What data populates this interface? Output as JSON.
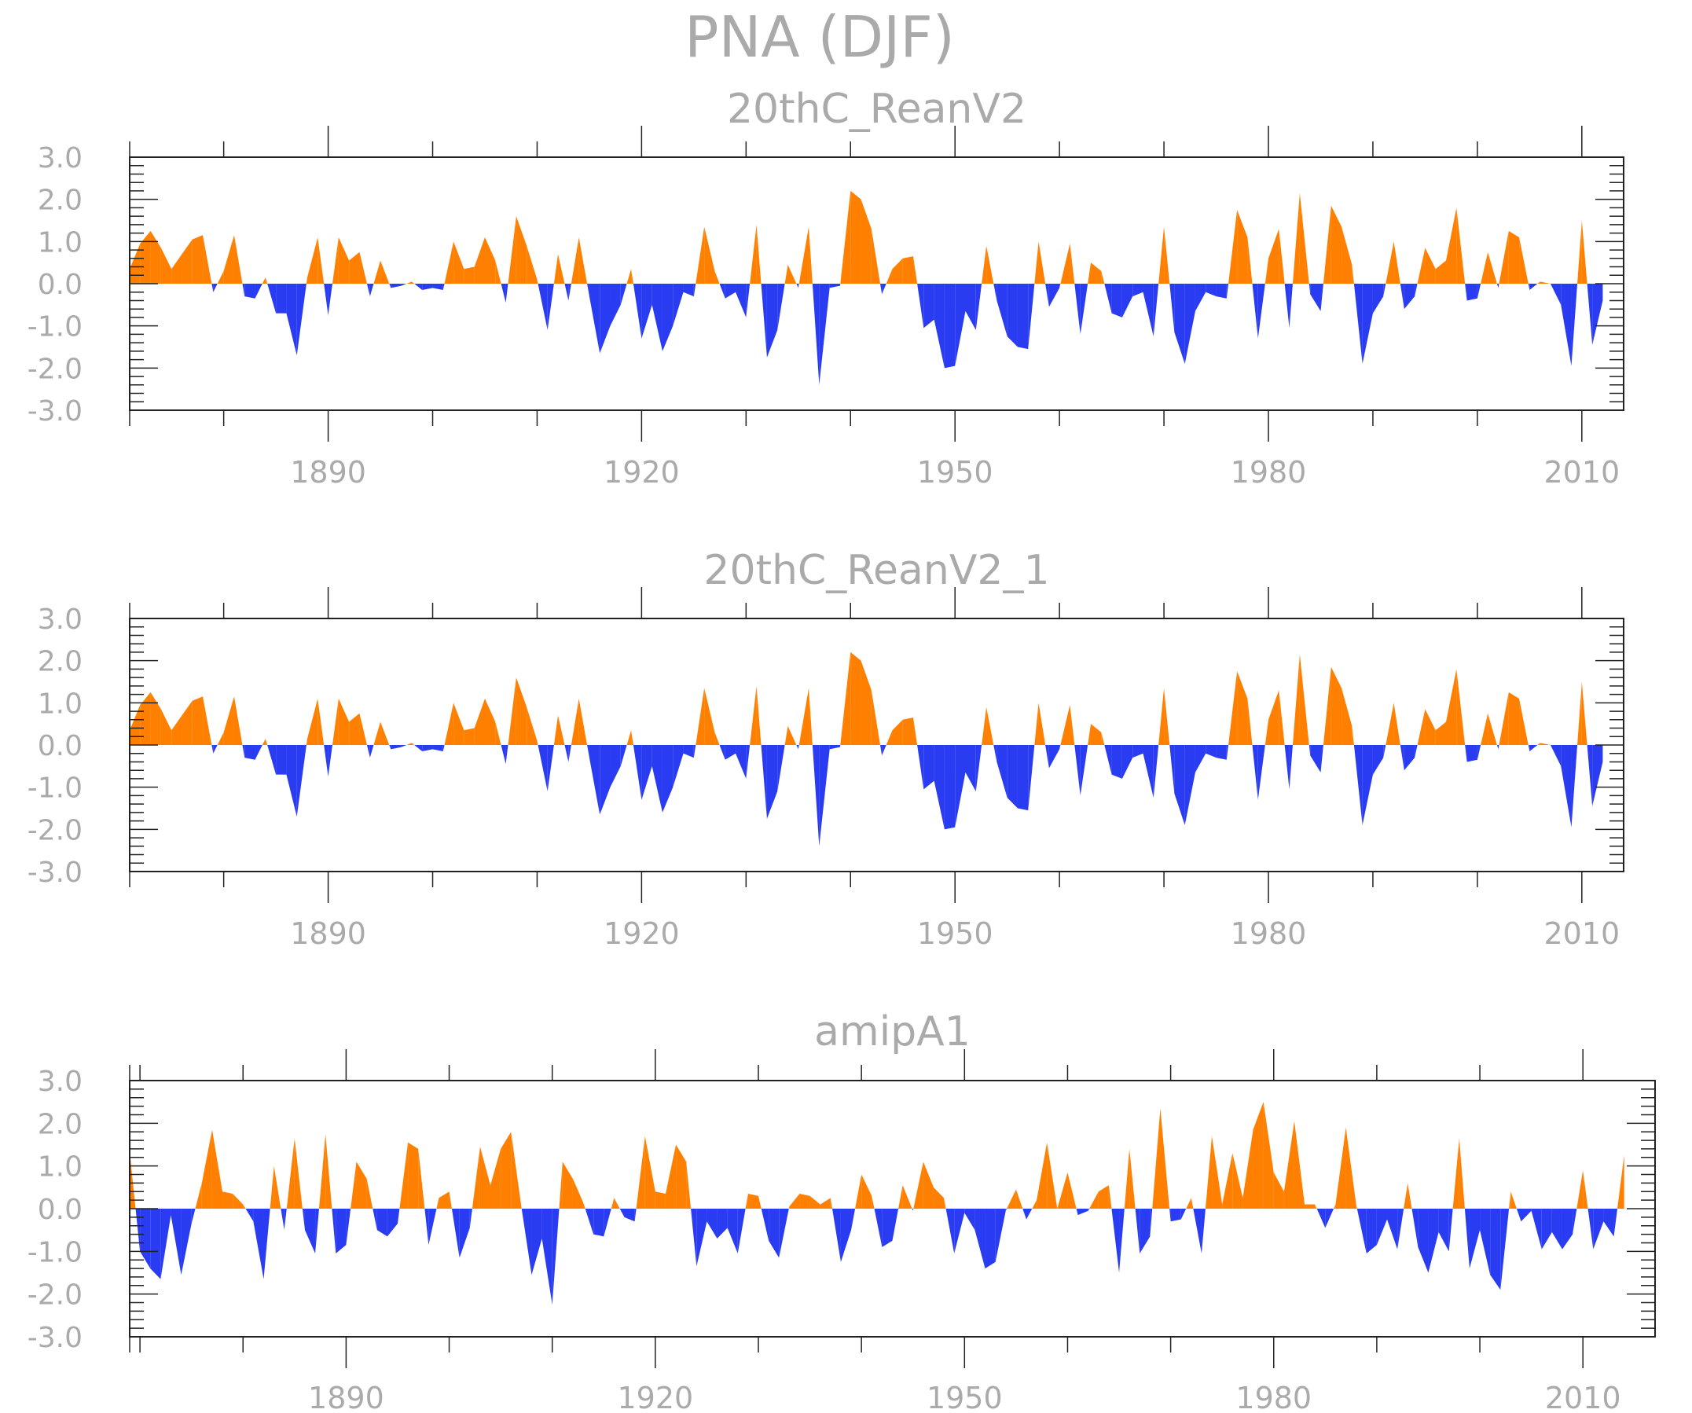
{
  "title": "PNA (DJF)",
  "colors": {
    "positive": "#ff8000",
    "negative": "#2a3cf2",
    "axis": "#222222",
    "text": "#aaaaaa"
  },
  "chart_data": [
    {
      "type": "area",
      "title": "20thC_ReanV2",
      "ylim": [
        -3.0,
        3.0
      ],
      "yticks": [
        3.0,
        2.0,
        1.0,
        0.0,
        -1.0,
        -2.0,
        -3.0
      ],
      "ytick_labels": [
        "3.0",
        "2.0",
        "1.0",
        "0.0",
        "-1.0",
        "-2.0",
        "-3.0"
      ],
      "xlim": [
        1871,
        2014
      ],
      "xticks": [
        1890,
        1920,
        1950,
        1980,
        2010
      ],
      "xtick_labels": [
        "1890",
        "1920",
        "1950",
        "1980",
        "2010"
      ],
      "grid": false,
      "series": [
        {
          "x": [
            1871,
            1872,
            1873,
            1874,
            1875,
            1876,
            1877,
            1878,
            1879,
            1880,
            1881,
            1882,
            1883,
            1884,
            1885,
            1886,
            1887,
            1888,
            1889,
            1890,
            1891,
            1892,
            1893,
            1894,
            1895,
            1896,
            1897,
            1898,
            1899,
            1900,
            1901,
            1902,
            1903,
            1904,
            1905,
            1906,
            1907,
            1908,
            1909,
            1910,
            1911,
            1912,
            1913,
            1914,
            1915,
            1916,
            1917,
            1918,
            1919,
            1920,
            1921,
            1922,
            1923,
            1924,
            1925,
            1926,
            1927,
            1928,
            1929,
            1930,
            1931,
            1932,
            1933,
            1934,
            1935,
            1936,
            1937,
            1938,
            1939,
            1940,
            1941,
            1942,
            1943,
            1944,
            1945,
            1946,
            1947,
            1948,
            1949,
            1950,
            1951,
            1952,
            1953,
            1954,
            1955,
            1956,
            1957,
            1958,
            1959,
            1960,
            1961,
            1962,
            1963,
            1964,
            1965,
            1966,
            1967,
            1968,
            1969,
            1970,
            1971,
            1972,
            1973,
            1974,
            1975,
            1976,
            1977,
            1978,
            1979,
            1980,
            1981,
            1982,
            1983,
            1984,
            1985,
            1986,
            1987,
            1988,
            1989,
            1990,
            1991,
            1992,
            1993,
            1994,
            1995,
            1996,
            1997,
            1998,
            1999,
            2000,
            2001,
            2002,
            2003,
            2004,
            2005,
            2006,
            2007,
            2008,
            2009,
            2010,
            2011,
            2012
          ],
          "values": [
            0.35,
            0.95,
            1.25,
            0.85,
            0.35,
            0.7,
            1.05,
            1.15,
            -0.2,
            0.3,
            1.15,
            -0.3,
            -0.35,
            0.15,
            -0.7,
            -0.7,
            -1.7,
            0.15,
            1.1,
            -0.75,
            1.1,
            0.55,
            0.75,
            -0.3,
            0.55,
            -0.1,
            -0.05,
            0.05,
            -0.15,
            -0.1,
            -0.15,
            1.0,
            0.35,
            0.4,
            1.1,
            0.55,
            -0.45,
            1.6,
            0.9,
            0.1,
            -1.1,
            0.7,
            -0.4,
            1.1,
            -0.3,
            -1.65,
            -1.0,
            -0.5,
            0.35,
            -1.3,
            -0.5,
            -1.6,
            -1.0,
            -0.2,
            -0.3,
            1.35,
            0.3,
            -0.35,
            -0.2,
            -0.8,
            1.4,
            -1.75,
            -1.1,
            0.45,
            -0.1,
            1.35,
            -2.4,
            -0.1,
            -0.05,
            2.2,
            2.0,
            1.3,
            -0.25,
            0.35,
            0.6,
            0.65,
            -1.05,
            -0.85,
            -2.0,
            -1.95,
            -0.65,
            -1.1,
            0.9,
            -0.4,
            -1.25,
            -1.5,
            -1.55,
            1.0,
            -0.55,
            -0.1,
            0.95,
            -1.2,
            0.5,
            0.3,
            -0.7,
            -0.8,
            -0.3,
            -0.2,
            -1.25,
            1.35,
            -1.15,
            -1.9,
            -0.65,
            -0.2,
            -0.3,
            -0.35,
            1.75,
            1.1,
            -1.3,
            0.6,
            1.3,
            -1.05,
            2.15,
            -0.25,
            -0.65,
            1.85,
            1.35,
            0.45,
            -1.9,
            -0.7,
            -0.3,
            1.0,
            -0.6,
            -0.3,
            0.85,
            0.35,
            0.55,
            1.8,
            -0.4,
            -0.35,
            0.75,
            -0.1,
            1.25,
            1.1,
            -0.15,
            0.05,
            0.0,
            -0.5,
            -1.95,
            1.5,
            -1.45,
            -0.4
          ]
        }
      ]
    },
    {
      "type": "area",
      "title": "20thC_ReanV2_1",
      "ylim": [
        -3.0,
        3.0
      ],
      "yticks": [
        3.0,
        2.0,
        1.0,
        0.0,
        -1.0,
        -2.0,
        -3.0
      ],
      "ytick_labels": [
        "3.0",
        "2.0",
        "1.0",
        "0.0",
        "-1.0",
        "-2.0",
        "-3.0"
      ],
      "xlim": [
        1871,
        2014
      ],
      "xticks": [
        1890,
        1920,
        1950,
        1980,
        2010
      ],
      "xtick_labels": [
        "1890",
        "1920",
        "1950",
        "1980",
        "2010"
      ],
      "grid": false,
      "series": [
        {
          "x": [
            1871,
            1872,
            1873,
            1874,
            1875,
            1876,
            1877,
            1878,
            1879,
            1880,
            1881,
            1882,
            1883,
            1884,
            1885,
            1886,
            1887,
            1888,
            1889,
            1890,
            1891,
            1892,
            1893,
            1894,
            1895,
            1896,
            1897,
            1898,
            1899,
            1900,
            1901,
            1902,
            1903,
            1904,
            1905,
            1906,
            1907,
            1908,
            1909,
            1910,
            1911,
            1912,
            1913,
            1914,
            1915,
            1916,
            1917,
            1918,
            1919,
            1920,
            1921,
            1922,
            1923,
            1924,
            1925,
            1926,
            1927,
            1928,
            1929,
            1930,
            1931,
            1932,
            1933,
            1934,
            1935,
            1936,
            1937,
            1938,
            1939,
            1940,
            1941,
            1942,
            1943,
            1944,
            1945,
            1946,
            1947,
            1948,
            1949,
            1950,
            1951,
            1952,
            1953,
            1954,
            1955,
            1956,
            1957,
            1958,
            1959,
            1960,
            1961,
            1962,
            1963,
            1964,
            1965,
            1966,
            1967,
            1968,
            1969,
            1970,
            1971,
            1972,
            1973,
            1974,
            1975,
            1976,
            1977,
            1978,
            1979,
            1980,
            1981,
            1982,
            1983,
            1984,
            1985,
            1986,
            1987,
            1988,
            1989,
            1990,
            1991,
            1992,
            1993,
            1994,
            1995,
            1996,
            1997,
            1998,
            1999,
            2000,
            2001,
            2002,
            2003,
            2004,
            2005,
            2006,
            2007,
            2008,
            2009,
            2010,
            2011,
            2012
          ],
          "values": [
            0.35,
            0.95,
            1.25,
            0.85,
            0.35,
            0.7,
            1.05,
            1.15,
            -0.2,
            0.3,
            1.15,
            -0.3,
            -0.35,
            0.15,
            -0.7,
            -0.7,
            -1.7,
            0.15,
            1.1,
            -0.75,
            1.1,
            0.55,
            0.75,
            -0.3,
            0.55,
            -0.1,
            -0.05,
            0.05,
            -0.15,
            -0.1,
            -0.15,
            1.0,
            0.35,
            0.4,
            1.1,
            0.55,
            -0.45,
            1.6,
            0.9,
            0.1,
            -1.1,
            0.7,
            -0.4,
            1.1,
            -0.3,
            -1.65,
            -1.0,
            -0.5,
            0.35,
            -1.3,
            -0.5,
            -1.6,
            -1.0,
            -0.2,
            -0.3,
            1.35,
            0.3,
            -0.35,
            -0.2,
            -0.8,
            1.4,
            -1.75,
            -1.1,
            0.45,
            -0.1,
            1.35,
            -2.4,
            -0.1,
            -0.05,
            2.2,
            2.0,
            1.3,
            -0.25,
            0.35,
            0.6,
            0.65,
            -1.05,
            -0.85,
            -2.0,
            -1.95,
            -0.65,
            -1.1,
            0.9,
            -0.4,
            -1.25,
            -1.5,
            -1.55,
            1.0,
            -0.55,
            -0.1,
            0.95,
            -1.2,
            0.5,
            0.3,
            -0.7,
            -0.8,
            -0.3,
            -0.2,
            -1.25,
            1.35,
            -1.15,
            -1.9,
            -0.65,
            -0.2,
            -0.3,
            -0.35,
            1.75,
            1.1,
            -1.3,
            0.6,
            1.3,
            -1.05,
            2.15,
            -0.25,
            -0.65,
            1.85,
            1.35,
            0.45,
            -1.9,
            -0.7,
            -0.3,
            1.0,
            -0.6,
            -0.3,
            0.85,
            0.35,
            0.55,
            1.8,
            -0.4,
            -0.35,
            0.75,
            -0.1,
            1.25,
            1.1,
            -0.15,
            0.05,
            0.0,
            -0.5,
            -1.95,
            1.5,
            -1.45,
            -0.4
          ]
        }
      ]
    },
    {
      "type": "area",
      "title": "amipA1",
      "ylim": [
        -3.0,
        3.0
      ],
      "yticks": [
        3.0,
        2.0,
        1.0,
        0.0,
        -1.0,
        -2.0,
        -3.0
      ],
      "ytick_labels": [
        "3.0",
        "2.0",
        "1.0",
        "0.0",
        "-1.0",
        "-2.0",
        "-3.0"
      ],
      "xlim": [
        1869,
        2017
      ],
      "xticks": [
        1890,
        1920,
        1950,
        1980,
        2010
      ],
      "xtick_labels": [
        "1890",
        "1920",
        "1950",
        "1980",
        "2010"
      ],
      "grid": false,
      "series": [
        {
          "x": [
            1869,
            1870,
            1871,
            1872,
            1873,
            1874,
            1875,
            1876,
            1877,
            1878,
            1879,
            1880,
            1881,
            1882,
            1883,
            1884,
            1885,
            1886,
            1887,
            1888,
            1889,
            1890,
            1891,
            1892,
            1893,
            1894,
            1895,
            1896,
            1897,
            1898,
            1899,
            1900,
            1901,
            1902,
            1903,
            1904,
            1905,
            1906,
            1907,
            1908,
            1909,
            1910,
            1911,
            1912,
            1913,
            1914,
            1915,
            1916,
            1917,
            1918,
            1919,
            1920,
            1921,
            1922,
            1923,
            1924,
            1925,
            1926,
            1927,
            1928,
            1929,
            1930,
            1931,
            1932,
            1933,
            1934,
            1935,
            1936,
            1937,
            1938,
            1939,
            1940,
            1941,
            1942,
            1943,
            1944,
            1945,
            1946,
            1947,
            1948,
            1949,
            1950,
            1951,
            1952,
            1953,
            1954,
            1955,
            1956,
            1957,
            1958,
            1959,
            1960,
            1961,
            1962,
            1963,
            1964,
            1965,
            1966,
            1967,
            1968,
            1969,
            1970,
            1971,
            1972,
            1973,
            1974,
            1975,
            1976,
            1977,
            1978,
            1979,
            1980,
            1981,
            1982,
            1983,
            1984,
            1985,
            1986,
            1987,
            1988,
            1989,
            1990,
            1991,
            1992,
            1993,
            1994,
            1995,
            1996,
            1997,
            1998,
            1999,
            2000,
            2001,
            2002,
            2003,
            2004,
            2005,
            2006,
            2007,
            2008,
            2009,
            2010,
            2011,
            2012,
            2013,
            2014
          ],
          "values": [
            1.35,
            -1.0,
            -1.4,
            -1.65,
            -0.15,
            -1.55,
            -0.35,
            0.6,
            1.85,
            0.4,
            0.35,
            0.1,
            -0.3,
            -1.65,
            1.0,
            -0.5,
            1.65,
            -0.5,
            -1.05,
            1.75,
            -1.05,
            -0.85,
            1.1,
            0.7,
            -0.5,
            -0.65,
            -0.35,
            1.55,
            1.4,
            -0.85,
            0.25,
            0.4,
            -1.15,
            -0.45,
            1.45,
            0.55,
            1.4,
            1.8,
            0.05,
            -1.55,
            -0.7,
            -2.25,
            1.1,
            0.7,
            0.15,
            -0.6,
            -0.65,
            0.25,
            -0.2,
            -0.3,
            1.7,
            0.4,
            0.35,
            1.5,
            1.1,
            -1.35,
            -0.3,
            -0.7,
            -0.45,
            -1.05,
            0.35,
            0.3,
            -0.75,
            -1.15,
            0.05,
            0.35,
            0.3,
            0.1,
            0.25,
            -1.25,
            -0.5,
            0.8,
            0.3,
            -0.9,
            -0.75,
            0.55,
            -0.05,
            1.1,
            0.5,
            0.25,
            -1.05,
            -0.1,
            -0.5,
            -1.4,
            -1.25,
            -0.05,
            0.45,
            -0.25,
            0.2,
            1.55,
            0.0,
            0.85,
            -0.15,
            -0.05,
            0.4,
            0.55,
            -1.5,
            1.4,
            -1.05,
            -0.65,
            2.35,
            -0.3,
            -0.25,
            0.25,
            -1.05,
            1.7,
            0.1,
            1.3,
            0.25,
            1.85,
            2.5,
            0.85,
            0.4,
            2.05,
            0.1,
            0.1,
            -0.45,
            0.1,
            1.9,
            0.1,
            -1.05,
            -0.85,
            -0.25,
            -0.95,
            0.6,
            -0.9,
            -1.5,
            -0.55,
            -1.0,
            1.65,
            -1.4,
            -0.5,
            -1.55,
            -1.9,
            0.4,
            -0.3,
            -0.05,
            -0.95,
            -0.55,
            -0.95,
            -0.6,
            0.9,
            -0.95,
            -0.3,
            -0.65,
            1.25
          ]
        }
      ]
    }
  ]
}
